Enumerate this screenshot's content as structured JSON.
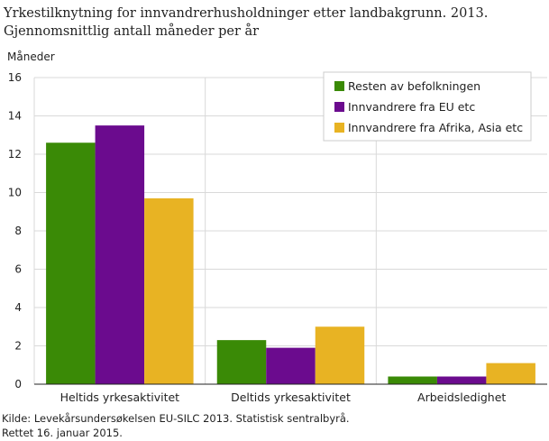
{
  "title_line1": "Yrkestilknytning for innvandrerhusholdninger etter landbakgrunn. 2013.",
  "title_line2": "Gjennomsnittlig antall måneder per år",
  "source_line1": "Kilde: Levekårsundersøkelsen EU-SILC 2013. Statistisk sentralbyrå.",
  "source_line2": "Rettet 16. januar 2015.",
  "chart_data": {
    "type": "bar",
    "ylabel": "Måneder",
    "xlabel": "",
    "ylim": [
      0,
      16
    ],
    "yticks": [
      0,
      2,
      4,
      6,
      8,
      10,
      12,
      14,
      16
    ],
    "grid": true,
    "legend_position": "top-right",
    "categories": [
      "Heltids yrkesaktivitet",
      "Deltids yrkesaktivitet",
      "Arbeidsledighet"
    ],
    "series": [
      {
        "name": "Resten av befolkningen",
        "color": "#3a8a06",
        "values": [
          12.6,
          2.3,
          0.4
        ]
      },
      {
        "name": "Innvandrere fra EU etc",
        "color": "#6b0b8e",
        "values": [
          13.5,
          1.9,
          0.4
        ]
      },
      {
        "name": "Innvandrere fra Afrika, Asia etc",
        "color": "#e8b323",
        "values": [
          9.7,
          3.0,
          1.1
        ]
      }
    ]
  }
}
